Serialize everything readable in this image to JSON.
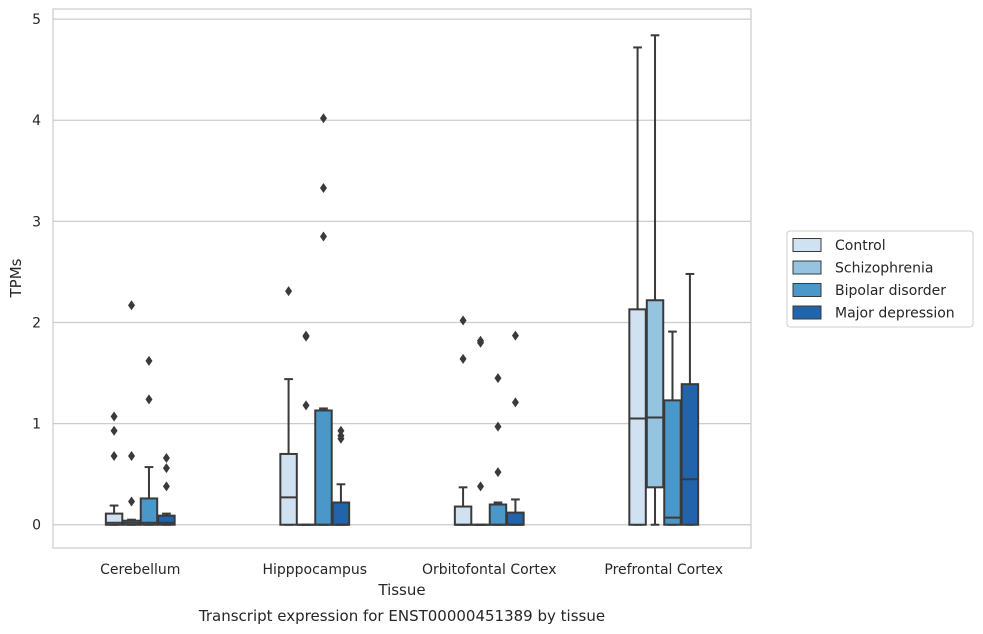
{
  "chart_data": {
    "type": "box",
    "caption": "Transcript expression for ENST00000451389 by tissue",
    "xlabel": "Tissue",
    "ylabel": "TPMs",
    "ylim": [
      -0.23,
      5.1
    ],
    "yticks": [
      0,
      1,
      2,
      3,
      4,
      5
    ],
    "grid": "horizontal",
    "legend_position": "right",
    "categories": [
      "Cerebellum",
      "Hipppocampus",
      "Orbitofontal Cortex",
      "Prefrontal Cortex"
    ],
    "series": [
      {
        "name": "Control",
        "color": "#d0e1f2",
        "boxes": [
          {
            "whislo": 0,
            "q1": 0,
            "med": 0.02,
            "q3": 0.11,
            "whishi": 0.19,
            "fliers": [
              0.68,
              0.93,
              1.07
            ]
          },
          {
            "whislo": 0,
            "q1": 0,
            "med": 0.27,
            "q3": 0.7,
            "whishi": 1.44,
            "fliers": [
              2.31
            ]
          },
          {
            "whislo": 0,
            "q1": 0,
            "med": 0.0,
            "q3": 0.18,
            "whishi": 0.37,
            "fliers": [
              1.64,
              2.02
            ]
          },
          {
            "whislo": 0,
            "q1": 0,
            "med": 1.05,
            "q3": 2.13,
            "whishi": 4.72,
            "fliers": []
          }
        ]
      },
      {
        "name": "Schizophrenia",
        "color": "#94c4df",
        "boxes": [
          {
            "whislo": 0,
            "q1": 0,
            "med": 0.02,
            "q3": 0.04,
            "whishi": 0.05,
            "fliers": [
              0.23,
              0.68,
              2.17
            ]
          },
          {
            "whislo": 0,
            "q1": 0,
            "med": 0.0,
            "q3": 0.0,
            "whishi": 0.0,
            "fliers": [
              1.18,
              1.86,
              1.87
            ]
          },
          {
            "whislo": 0,
            "q1": 0,
            "med": 0.0,
            "q3": 0.0,
            "whishi": 0.0,
            "fliers": [
              0.38,
              1.8,
              1.82
            ]
          },
          {
            "whislo": 0,
            "q1": 0.37,
            "med": 1.06,
            "q3": 2.22,
            "whishi": 4.84,
            "fliers": []
          }
        ]
      },
      {
        "name": "Bipolar disorder",
        "color": "#4a98c9",
        "boxes": [
          {
            "whislo": 0,
            "q1": 0,
            "med": 0.02,
            "q3": 0.26,
            "whishi": 0.57,
            "fliers": [
              1.24,
              1.62
            ]
          },
          {
            "whislo": 0,
            "q1": 0,
            "med": 0.0,
            "q3": 1.13,
            "whishi": 1.15,
            "fliers": [
              2.85,
              3.33,
              4.02
            ]
          },
          {
            "whislo": 0,
            "q1": 0,
            "med": 0.0,
            "q3": 0.2,
            "whishi": 0.22,
            "fliers": [
              0.52,
              0.97,
              1.45
            ]
          },
          {
            "whislo": 0,
            "q1": 0,
            "med": 0.07,
            "q3": 1.23,
            "whishi": 1.91,
            "fliers": []
          }
        ]
      },
      {
        "name": "Major depression",
        "color": "#2164ab",
        "boxes": [
          {
            "whislo": 0,
            "q1": 0,
            "med": 0.02,
            "q3": 0.09,
            "whishi": 0.11,
            "fliers": [
              0.38,
              0.56,
              0.66
            ]
          },
          {
            "whislo": 0,
            "q1": 0,
            "med": 0.0,
            "q3": 0.22,
            "whishi": 0.4,
            "fliers": [
              0.85,
              0.88,
              0.93
            ]
          },
          {
            "whislo": 0,
            "q1": 0,
            "med": 0.0,
            "q3": 0.12,
            "whishi": 0.25,
            "fliers": [
              1.21,
              1.87
            ]
          },
          {
            "whislo": 0,
            "q1": 0,
            "med": 0.45,
            "q3": 1.39,
            "whishi": 2.48,
            "fliers": []
          }
        ]
      }
    ]
  }
}
